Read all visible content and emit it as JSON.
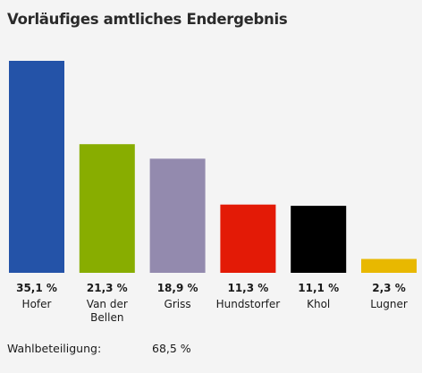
{
  "chart_data": {
    "type": "bar",
    "title": "Vorläufiges amtliches Endergebnis",
    "categories": [
      "Hofer",
      "Van der Bellen",
      "Griss",
      "Hundstorfer",
      "Khol",
      "Lugner"
    ],
    "category_lines": [
      [
        "Hofer"
      ],
      [
        "Van der",
        "Bellen"
      ],
      [
        "Griss"
      ],
      [
        "Hundstorfer"
      ],
      [
        "Khol"
      ],
      [
        "Lugner"
      ]
    ],
    "values": [
      35.1,
      21.3,
      18.9,
      11.3,
      11.1,
      2.3
    ],
    "value_labels": [
      "35,1 %",
      "21,3 %",
      "18,9 %",
      "11,3 %",
      "11,1 %",
      "2,3 %"
    ],
    "colors": [
      "#2453a8",
      "#88ad00",
      "#938aae",
      "#e31a06",
      "#000000",
      "#e8b800"
    ],
    "ylim": [
      0,
      35.1
    ],
    "grid": false,
    "legend": "none"
  },
  "turnout": {
    "label": "Wahlbeteiligung:",
    "value": "68,5 %"
  }
}
